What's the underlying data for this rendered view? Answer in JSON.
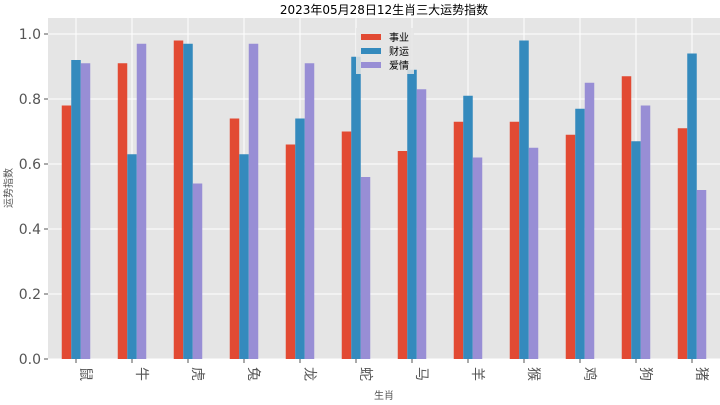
{
  "chart_data": {
    "type": "bar",
    "title": "2023年05月28日12生肖三大运势指数",
    "xlabel": "生肖",
    "ylabel": "运势指数",
    "ylim": [
      0,
      1.0
    ],
    "yticks": [
      "0.0",
      "0.2",
      "0.4",
      "0.6",
      "0.8",
      "1.0"
    ],
    "grid": true,
    "legend_position": "top-center",
    "categories": [
      "鼠",
      "牛",
      "虎",
      "兔",
      "龙",
      "蛇",
      "马",
      "羊",
      "猴",
      "鸡",
      "狗",
      "猪"
    ],
    "series": [
      {
        "name": "事业",
        "color": "#E24A33",
        "values": [
          0.78,
          0.91,
          0.98,
          0.74,
          0.66,
          0.7,
          0.64,
          0.73,
          0.73,
          0.69,
          0.87,
          0.71
        ]
      },
      {
        "name": "财运",
        "color": "#348ABD",
        "values": [
          0.92,
          0.63,
          0.97,
          0.63,
          0.74,
          0.93,
          0.89,
          0.81,
          0.98,
          0.77,
          0.67,
          0.94
        ]
      },
      {
        "name": "爱情",
        "color": "#988ED5",
        "values": [
          0.91,
          0.97,
          0.54,
          0.97,
          0.91,
          0.56,
          0.83,
          0.62,
          0.65,
          0.85,
          0.78,
          0.52
        ]
      }
    ]
  }
}
